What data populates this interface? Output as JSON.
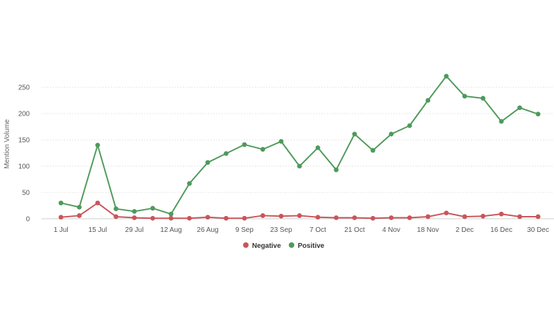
{
  "chart_data": {
    "type": "line",
    "title": "",
    "xlabel": "",
    "ylabel": "Mention Volume",
    "ylim": [
      0,
      275
    ],
    "yticks": [
      0,
      50,
      100,
      150,
      200,
      250
    ],
    "grid": true,
    "legend_position": "bottom-center",
    "x": [
      "2024-07-01",
      "2024-07-08",
      "2024-07-15",
      "2024-07-22",
      "2024-07-29",
      "2024-08-05",
      "2024-08-12",
      "2024-08-19",
      "2024-08-26",
      "2024-09-02",
      "2024-09-09",
      "2024-09-16",
      "2024-09-23",
      "2024-09-30",
      "2024-10-07",
      "2024-10-14",
      "2024-10-21",
      "2024-10-28",
      "2024-11-04",
      "2024-11-11",
      "2024-11-18",
      "2024-11-25",
      "2024-12-02",
      "2024-12-09",
      "2024-12-16",
      "2024-12-23",
      "2024-12-30"
    ],
    "xtick_labels": [
      "1 Jul",
      "15 Jul",
      "29 Jul",
      "12 Aug",
      "26 Aug",
      "9 Sep",
      "23 Sep",
      "7 Oct",
      "21 Oct",
      "4 Nov",
      "18 Nov",
      "2 Dec",
      "16 Dec",
      "30 Dec"
    ],
    "series": [
      {
        "name": "Negative",
        "color": "#c9555a",
        "values": [
          3,
          6,
          30,
          4,
          2,
          1,
          1,
          1,
          3,
          1,
          1,
          6,
          5,
          6,
          3,
          2,
          2,
          1,
          2,
          2,
          4,
          11,
          4,
          5,
          9,
          4,
          4
        ]
      },
      {
        "name": "Positive",
        "color": "#4e9a5c",
        "values": [
          30,
          22,
          140,
          19,
          14,
          20,
          9,
          67,
          107,
          124,
          141,
          132,
          147,
          100,
          135,
          93,
          161,
          130,
          161,
          177,
          225,
          271,
          233,
          229,
          185,
          211,
          199
        ]
      }
    ]
  }
}
